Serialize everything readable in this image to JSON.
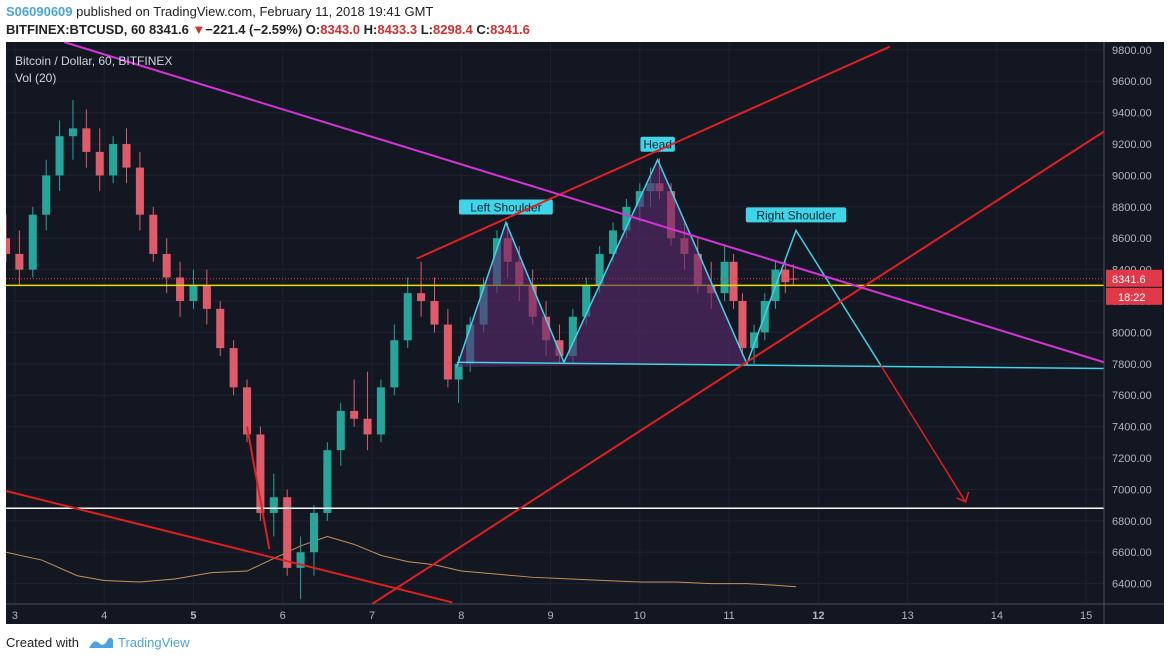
{
  "header": {
    "username": "S06090609",
    "published": " published on TradingView.com, February 11, 2018 19:41 GMT",
    "symbol": "BITFINEX:BTCUSD, 60",
    "last": "8341.6",
    "change_arrow": "▼",
    "change": "−221.4 (−2.59%)",
    "o_label": "O:",
    "o": "8343.0",
    "h_label": "H:",
    "h": "8433.3",
    "l_label": "L:",
    "l": "8298.4",
    "c_label": "C:",
    "c": "8341.6"
  },
  "footer": {
    "created_with": "Created with",
    "brand": "TradingView"
  },
  "chart_data": {
    "type": "candlestick",
    "title": "Bitcoin / Dollar, 60, BITFINEX",
    "subtitle": "Vol (20)",
    "x_ticks": [
      "3",
      "4",
      "5",
      "6",
      "7",
      "8",
      "9",
      "10",
      "11",
      "12",
      "13",
      "14",
      "15"
    ],
    "x_tick_values": [
      3,
      4,
      5,
      6,
      7,
      8,
      9,
      10,
      11,
      12,
      13,
      14,
      15
    ],
    "xlim": [
      2.9,
      15.2
    ],
    "y_ticks": [
      6400,
      6600,
      6800,
      7000,
      7200,
      7400,
      7600,
      7800,
      8000,
      8200,
      8400,
      8600,
      8800,
      9000,
      9200,
      9400,
      9600,
      9800
    ],
    "ylim": [
      6270,
      9850
    ],
    "last_price_label": "8341.6",
    "countdown_label": "18:22",
    "last_price": 8341.6,
    "yellow_level": 8300,
    "white_level": 6880,
    "ohlc": [
      {
        "t": 2.9,
        "o": 8600,
        "h": 8750,
        "l": 8450,
        "c": 8500
      },
      {
        "t": 3.05,
        "o": 8500,
        "h": 8650,
        "l": 8300,
        "c": 8400
      },
      {
        "t": 3.2,
        "o": 8400,
        "h": 8800,
        "l": 8350,
        "c": 8750
      },
      {
        "t": 3.35,
        "o": 8750,
        "h": 9100,
        "l": 8650,
        "c": 9000
      },
      {
        "t": 3.5,
        "o": 9000,
        "h": 9350,
        "l": 8900,
        "c": 9250
      },
      {
        "t": 3.65,
        "o": 9250,
        "h": 9480,
        "l": 9100,
        "c": 9300
      },
      {
        "t": 3.8,
        "o": 9300,
        "h": 9420,
        "l": 9050,
        "c": 9150
      },
      {
        "t": 3.95,
        "o": 9150,
        "h": 9300,
        "l": 8900,
        "c": 9000
      },
      {
        "t": 4.1,
        "o": 9000,
        "h": 9250,
        "l": 8950,
        "c": 9200
      },
      {
        "t": 4.25,
        "o": 9200,
        "h": 9300,
        "l": 8950,
        "c": 9050
      },
      {
        "t": 4.4,
        "o": 9050,
        "h": 9150,
        "l": 8650,
        "c": 8750
      },
      {
        "t": 4.55,
        "o": 8750,
        "h": 8800,
        "l": 8450,
        "c": 8500
      },
      {
        "t": 4.7,
        "o": 8500,
        "h": 8600,
        "l": 8250,
        "c": 8350
      },
      {
        "t": 4.85,
        "o": 8350,
        "h": 8450,
        "l": 8100,
        "c": 8200
      },
      {
        "t": 5.0,
        "o": 8200,
        "h": 8400,
        "l": 8150,
        "c": 8300
      },
      {
        "t": 5.15,
        "o": 8300,
        "h": 8400,
        "l": 8050,
        "c": 8150
      },
      {
        "t": 5.3,
        "o": 8150,
        "h": 8200,
        "l": 7850,
        "c": 7900
      },
      {
        "t": 5.45,
        "o": 7900,
        "h": 7950,
        "l": 7600,
        "c": 7650
      },
      {
        "t": 5.6,
        "o": 7650,
        "h": 7700,
        "l": 7300,
        "c": 7350
      },
      {
        "t": 5.75,
        "o": 7350,
        "h": 7400,
        "l": 6800,
        "c": 6850
      },
      {
        "t": 5.9,
        "o": 6850,
        "h": 7100,
        "l": 6700,
        "c": 6950
      },
      {
        "t": 6.05,
        "o": 6950,
        "h": 7000,
        "l": 6450,
        "c": 6500
      },
      {
        "t": 6.2,
        "o": 6500,
        "h": 6700,
        "l": 6300,
        "c": 6600
      },
      {
        "t": 6.35,
        "o": 6600,
        "h": 6900,
        "l": 6450,
        "c": 6850
      },
      {
        "t": 6.5,
        "o": 6850,
        "h": 7300,
        "l": 6800,
        "c": 7250
      },
      {
        "t": 6.65,
        "o": 7250,
        "h": 7550,
        "l": 7150,
        "c": 7500
      },
      {
        "t": 6.8,
        "o": 7500,
        "h": 7700,
        "l": 7400,
        "c": 7450
      },
      {
        "t": 6.95,
        "o": 7450,
        "h": 7750,
        "l": 7250,
        "c": 7350
      },
      {
        "t": 7.1,
        "o": 7350,
        "h": 7700,
        "l": 7300,
        "c": 7650
      },
      {
        "t": 7.25,
        "o": 7650,
        "h": 8050,
        "l": 7600,
        "c": 7950
      },
      {
        "t": 7.4,
        "o": 7950,
        "h": 8350,
        "l": 7900,
        "c": 8250
      },
      {
        "t": 7.55,
        "o": 8250,
        "h": 8450,
        "l": 8100,
        "c": 8200
      },
      {
        "t": 7.7,
        "o": 8200,
        "h": 8350,
        "l": 8000,
        "c": 8050
      },
      {
        "t": 7.85,
        "o": 8050,
        "h": 8150,
        "l": 7650,
        "c": 7700
      },
      {
        "t": 7.97,
        "o": 7700,
        "h": 7850,
        "l": 7550,
        "c": 7800
      },
      {
        "t": 8.1,
        "o": 7800,
        "h": 8100,
        "l": 7750,
        "c": 8050
      },
      {
        "t": 8.25,
        "o": 8050,
        "h": 8350,
        "l": 8000,
        "c": 8300
      },
      {
        "t": 8.4,
        "o": 8300,
        "h": 8650,
        "l": 8250,
        "c": 8600
      },
      {
        "t": 8.52,
        "o": 8600,
        "h": 8700,
        "l": 8350,
        "c": 8450
      },
      {
        "t": 8.65,
        "o": 8450,
        "h": 8550,
        "l": 8200,
        "c": 8300
      },
      {
        "t": 8.8,
        "o": 8300,
        "h": 8400,
        "l": 8050,
        "c": 8100
      },
      {
        "t": 8.95,
        "o": 8100,
        "h": 8200,
        "l": 7850,
        "c": 7950
      },
      {
        "t": 9.1,
        "o": 7950,
        "h": 8050,
        "l": 7800,
        "c": 7850
      },
      {
        "t": 9.25,
        "o": 7850,
        "h": 8150,
        "l": 7800,
        "c": 8100
      },
      {
        "t": 9.4,
        "o": 8100,
        "h": 8350,
        "l": 8050,
        "c": 8300
      },
      {
        "t": 9.55,
        "o": 8300,
        "h": 8550,
        "l": 8250,
        "c": 8500
      },
      {
        "t": 9.7,
        "o": 8500,
        "h": 8700,
        "l": 8450,
        "c": 8650
      },
      {
        "t": 9.85,
        "o": 8650,
        "h": 8850,
        "l": 8600,
        "c": 8800
      },
      {
        "t": 10.0,
        "o": 8800,
        "h": 8950,
        "l": 8700,
        "c": 8900
      },
      {
        "t": 10.12,
        "o": 8900,
        "h": 9050,
        "l": 8800,
        "c": 8950
      },
      {
        "t": 10.22,
        "o": 8950,
        "h": 9110,
        "l": 8850,
        "c": 8900
      },
      {
        "t": 10.35,
        "o": 8900,
        "h": 8950,
        "l": 8550,
        "c": 8600
      },
      {
        "t": 10.5,
        "o": 8600,
        "h": 8700,
        "l": 8400,
        "c": 8500
      },
      {
        "t": 10.65,
        "o": 8500,
        "h": 8600,
        "l": 8250,
        "c": 8300
      },
      {
        "t": 10.8,
        "o": 8300,
        "h": 8450,
        "l": 8150,
        "c": 8250
      },
      {
        "t": 10.95,
        "o": 8250,
        "h": 8550,
        "l": 8200,
        "c": 8450
      },
      {
        "t": 11.05,
        "o": 8450,
        "h": 8500,
        "l": 8150,
        "c": 8200
      },
      {
        "t": 11.15,
        "o": 8200,
        "h": 8250,
        "l": 7850,
        "c": 7900
      },
      {
        "t": 11.28,
        "o": 7900,
        "h": 8050,
        "l": 7800,
        "c": 8000
      },
      {
        "t": 11.4,
        "o": 8000,
        "h": 8250,
        "l": 7950,
        "c": 8200
      },
      {
        "t": 11.52,
        "o": 8200,
        "h": 8450,
        "l": 8150,
        "c": 8400
      },
      {
        "t": 11.63,
        "o": 8400,
        "h": 8450,
        "l": 8250,
        "c": 8320
      },
      {
        "t": 11.72,
        "o": 8343,
        "h": 8433.3,
        "l": 8298.4,
        "c": 8341.6
      }
    ],
    "volume_ma": [
      [
        2.9,
        6600
      ],
      [
        3.3,
        6550
      ],
      [
        3.7,
        6450
      ],
      [
        4.0,
        6420
      ],
      [
        4.4,
        6410
      ],
      [
        4.8,
        6430
      ],
      [
        5.2,
        6470
      ],
      [
        5.6,
        6480
      ],
      [
        5.9,
        6560
      ],
      [
        6.2,
        6640
      ],
      [
        6.5,
        6700
      ],
      [
        6.8,
        6650
      ],
      [
        7.1,
        6580
      ],
      [
        7.4,
        6540
      ],
      [
        7.7,
        6520
      ],
      [
        8.0,
        6480
      ],
      [
        8.4,
        6460
      ],
      [
        8.8,
        6440
      ],
      [
        9.2,
        6430
      ],
      [
        9.6,
        6420
      ],
      [
        10.0,
        6410
      ],
      [
        10.4,
        6410
      ],
      [
        10.8,
        6400
      ],
      [
        11.2,
        6400
      ],
      [
        11.5,
        6390
      ],
      [
        11.75,
        6380
      ]
    ],
    "pattern": {
      "label_left": "Left Shoulder",
      "label_head": "Head",
      "label_right": "Right Shoulder",
      "points": [
        [
          7.95,
          7780
        ],
        [
          8.5,
          8700
        ],
        [
          9.15,
          7810
        ],
        [
          10.2,
          9100
        ],
        [
          11.2,
          7800
        ],
        [
          11.75,
          8650
        ],
        [
          12.7,
          7790
        ]
      ],
      "neckline": [
        [
          7.95,
          7810
        ],
        [
          15.2,
          7770
        ]
      ]
    },
    "trendlines": [
      {
        "color": "#e02020",
        "points": [
          [
            7.5,
            8470
          ],
          [
            12.8,
            9820
          ]
        ]
      },
      {
        "color": "#e02020",
        "points": [
          [
            7.0,
            6270
          ],
          [
            15.2,
            9280
          ]
        ]
      },
      {
        "color": "#e02020",
        "points": [
          [
            2.9,
            6990
          ],
          [
            7.9,
            6280
          ]
        ]
      },
      {
        "color": "#e02020",
        "points": [
          [
            5.6,
            7400
          ],
          [
            5.85,
            6620
          ]
        ]
      },
      {
        "color": "#d633d6",
        "points": [
          [
            3.55,
            9850
          ],
          [
            15.2,
            7810
          ]
        ]
      }
    ],
    "target_arrow": [
      [
        12.7,
        7790
      ],
      [
        13.65,
        6920
      ]
    ],
    "colors": {
      "background": "#131722",
      "up": "#26a69a",
      "down": "#e05b6a",
      "pattern_line": "#3fd4e8",
      "pattern_fill": "#5b2a6e",
      "yellow": "#e8e000",
      "white": "#ffffff",
      "axis_text": "#b2b5be",
      "price_tag": "#e03a4a"
    }
  }
}
